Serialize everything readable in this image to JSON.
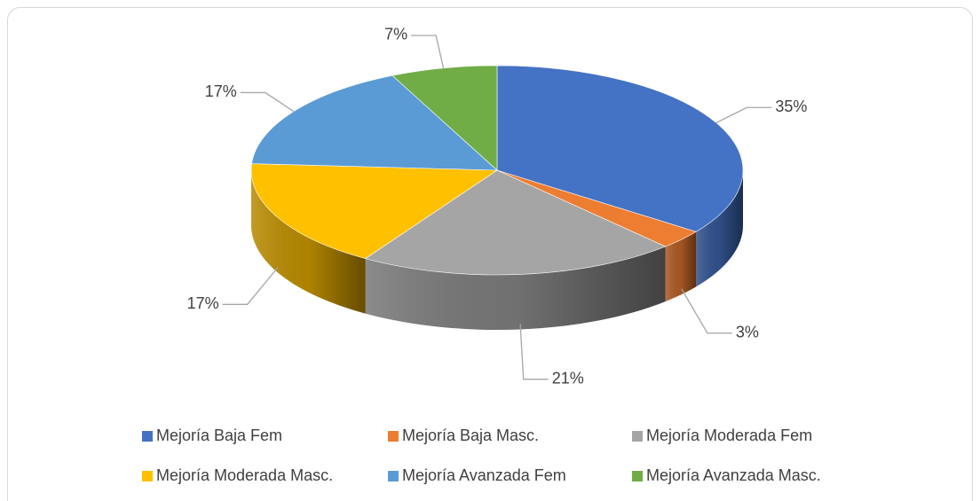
{
  "chart_data": {
    "type": "pie",
    "categories": [
      "Mejoría Baja Fem",
      "Mejoría Baja Masc.",
      "Mejoría Moderada Fem",
      "Mejoría Moderada Masc.",
      "Mejoría Avanzada Fem",
      "Mejoría Avanzada Masc."
    ],
    "values": [
      35,
      3,
      21,
      17,
      17,
      7
    ],
    "value_labels": [
      "35%",
      "3%",
      "21%",
      "17%",
      "17%",
      "7%"
    ],
    "colors": [
      "#4472c4",
      "#ed7d31",
      "#a5a5a5",
      "#ffc000",
      "#5b9bd5",
      "#70ad47"
    ],
    "legend": "bottom"
  }
}
